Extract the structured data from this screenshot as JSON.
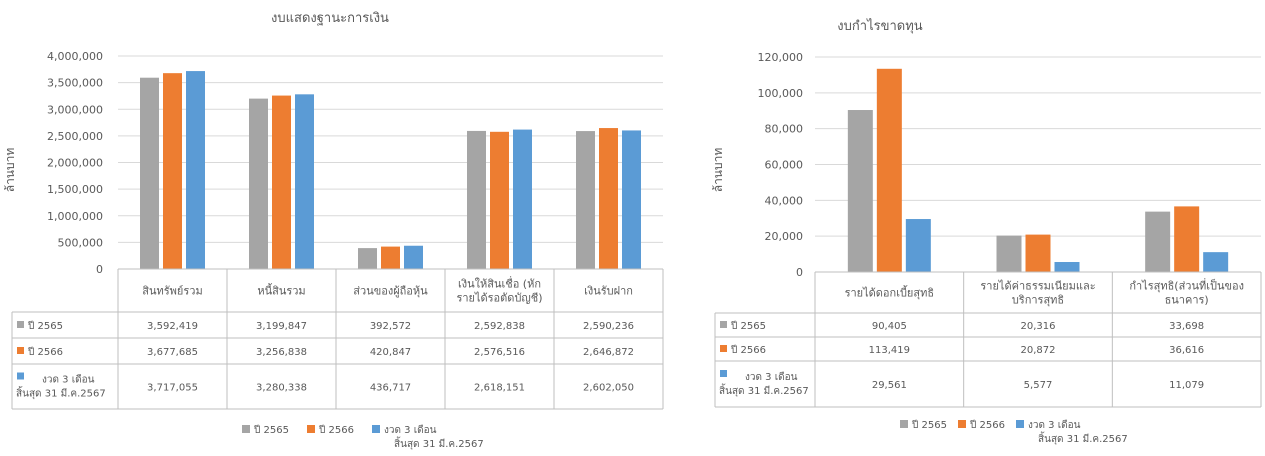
{
  "colors": {
    "series": [
      "#a5a5a5",
      "#ed7d31",
      "#5b9bd5"
    ],
    "grid": "#d9d9d9",
    "text": "#595959"
  },
  "chart_data": [
    {
      "type": "bar",
      "title": "งบแสดงฐานะการเงิน",
      "ylabel": "ล้านบาท",
      "ylim": [
        0,
        4000000
      ],
      "yticks": [
        "0",
        "500,000",
        "1,000,000",
        "1,500,000",
        "2,000,000",
        "2,500,000",
        "3,000,000",
        "3,500,000",
        "4,000,000"
      ],
      "categories": [
        [
          "สินทรัพย์รวม"
        ],
        [
          "หนี้สินรวม"
        ],
        [
          "ส่วนของผู้ถือหุ้น"
        ],
        [
          "เงินให้สินเชื่อ (หัก",
          "รายได้รอตัดบัญชี)"
        ],
        [
          "เงินรับฝาก"
        ]
      ],
      "series": [
        {
          "name": "ปี 2565",
          "name_lines": [
            "ปี 2565"
          ],
          "values": [
            3592419,
            3199847,
            392572,
            2592838,
            2590236
          ],
          "labels": [
            "3,592,419",
            "3,199,847",
            "392,572",
            "2,592,838",
            "2,590,236"
          ]
        },
        {
          "name": "ปี 2566",
          "name_lines": [
            "ปี 2566"
          ],
          "values": [
            3677685,
            3256838,
            420847,
            2576516,
            2646872
          ],
          "labels": [
            "3,677,685",
            "3,256,838",
            "420,847",
            "2,576,516",
            "2,646,872"
          ]
        },
        {
          "name": "งวด 3 เดือน สิ้นสุด 31 มี.ค.2567",
          "name_lines": [
            "งวด 3 เดือน",
            "สิ้นสุด 31 มี.ค.2567"
          ],
          "values": [
            3717055,
            3280338,
            436717,
            2618151,
            2602050
          ],
          "labels": [
            "3,717,055",
            "3,280,338",
            "436,717",
            "2,618,151",
            "2,602,050"
          ]
        }
      ],
      "legend": "bottom",
      "data_table": true,
      "grid": true
    },
    {
      "type": "bar",
      "title": "งบกำไรขาดทุน",
      "ylabel": "ล้านบาท",
      "ylim": [
        0,
        120000
      ],
      "yticks": [
        "0",
        "20,000",
        "40,000",
        "60,000",
        "80,000",
        "100,000",
        "120,000"
      ],
      "categories": [
        [
          "รายได้ดอกเบี้ยสุทธิ"
        ],
        [
          "รายได้ค่าธรรมเนียมและ",
          "บริการสุทธิ"
        ],
        [
          "กำไรสุทธิ(ส่วนที่เป็นของ",
          "ธนาคาร)"
        ]
      ],
      "series": [
        {
          "name": "ปี 2565",
          "name_lines": [
            "ปี 2565"
          ],
          "values": [
            90405,
            20316,
            33698
          ],
          "labels": [
            "90,405",
            "20,316",
            "33,698"
          ]
        },
        {
          "name": "ปี 2566",
          "name_lines": [
            "ปี 2566"
          ],
          "values": [
            113419,
            20872,
            36616
          ],
          "labels": [
            "113,419",
            "20,872",
            "36,616"
          ]
        },
        {
          "name": "งวด 3 เดือน สิ้นสุด 31 มี.ค.2567",
          "name_lines": [
            "งวด 3 เดือน",
            "สิ้นสุด 31 มี.ค.2567"
          ],
          "values": [
            29561,
            5577,
            11079
          ],
          "labels": [
            "29,561",
            "5,577",
            "11,079"
          ]
        }
      ],
      "legend": "bottom",
      "data_table": true,
      "grid": true
    }
  ]
}
